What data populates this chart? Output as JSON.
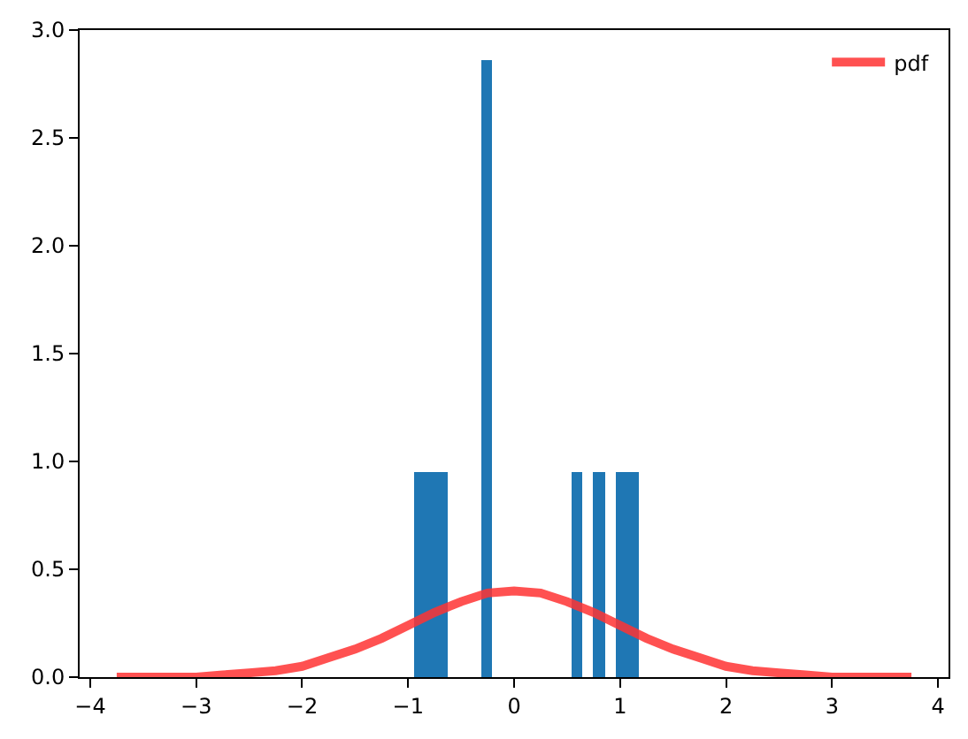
{
  "chart_data": {
    "type": "histogram",
    "xlim": [
      -4.1,
      4.1
    ],
    "ylim": [
      0,
      3
    ],
    "xticks": [
      {
        "value": -4,
        "label": "−4"
      },
      {
        "value": -3,
        "label": "−3"
      },
      {
        "value": -2,
        "label": "−2"
      },
      {
        "value": -1,
        "label": "−1"
      },
      0,
      1,
      2,
      3,
      4
    ],
    "yticks": [
      {
        "value": 0,
        "label": "0.0"
      },
      {
        "value": 0.5,
        "label": "0.5"
      },
      {
        "value": 1,
        "label": "1.0"
      },
      {
        "value": 1.5,
        "label": "1.5"
      },
      {
        "value": 2,
        "label": "2.0"
      },
      {
        "value": 2.5,
        "label": "2.5"
      },
      {
        "value": 3,
        "label": "3.0"
      }
    ],
    "legend": "top right",
    "series": [
      {
        "type": "histogram",
        "color": "#1f77b4",
        "bins": [
          -0.942,
          -0.836,
          -0.73,
          -0.625,
          -0.519,
          -0.413,
          -0.307,
          -0.201,
          -0.096,
          0.01,
          0.116,
          0.222,
          0.328,
          0.433,
          0.539,
          0.645,
          0.751,
          0.857,
          0.962,
          1.068,
          1.174
        ],
        "values": [
          0.95,
          0.95,
          0.95,
          0,
          0,
          0,
          2.86,
          0,
          0,
          0,
          0,
          0,
          0,
          0,
          0.95,
          0,
          0.95,
          0,
          0.95,
          0.95
        ]
      },
      {
        "type": "line",
        "name": "pdf",
        "color": "#ff3333",
        "x": [
          -3.75,
          -3.5,
          -3.25,
          -3,
          -2.75,
          -2.5,
          -2.25,
          -2,
          -1.75,
          -1.5,
          -1.25,
          -1,
          -0.75,
          -0.5,
          -0.25,
          0,
          0.25,
          0.5,
          0.75,
          1,
          1.25,
          1.5,
          1.75,
          2,
          2.25,
          2.5,
          2.75,
          3,
          3.25,
          3.5,
          3.75
        ],
        "values": [
          0.0,
          0.0,
          0.0,
          0.0,
          0.01,
          0.02,
          0.03,
          0.05,
          0.09,
          0.13,
          0.18,
          0.24,
          0.3,
          0.35,
          0.39,
          0.4,
          0.39,
          0.35,
          0.3,
          0.24,
          0.18,
          0.13,
          0.09,
          0.05,
          0.03,
          0.02,
          0.01,
          0.0,
          0.0,
          0.0,
          0.0
        ]
      }
    ]
  }
}
